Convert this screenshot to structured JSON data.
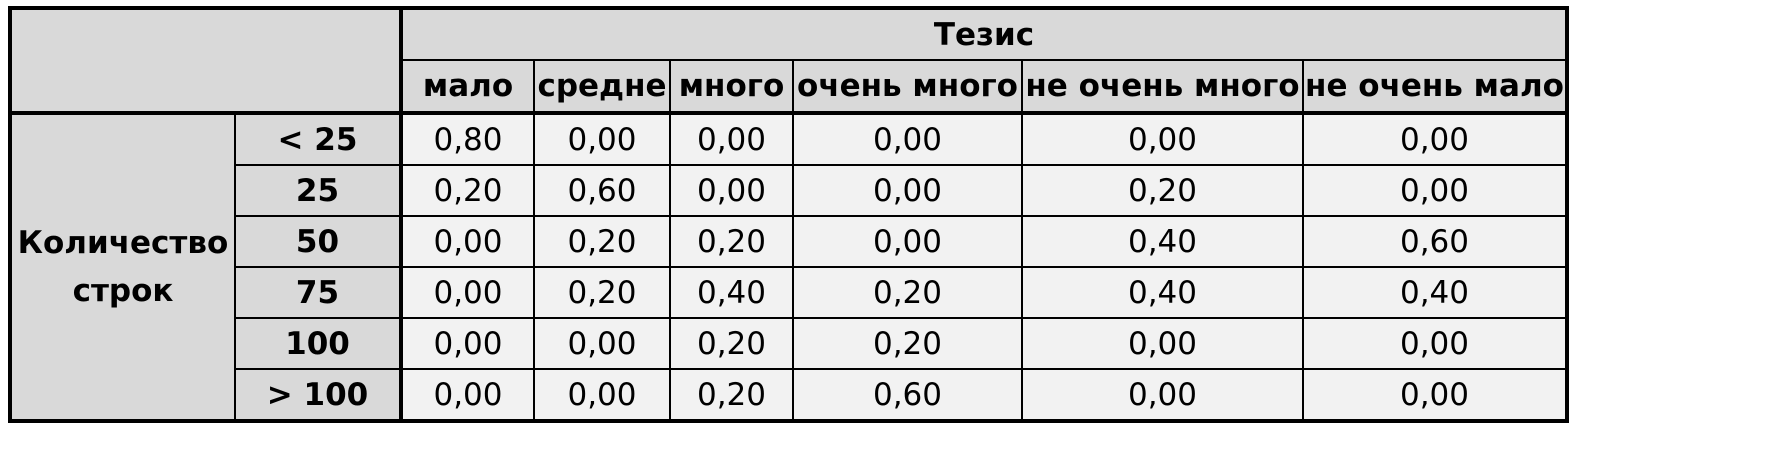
{
  "table": {
    "group_label": "Тезис",
    "columns": [
      "мало",
      "средне",
      "много",
      "очень много",
      "не очень много",
      "не очень мало"
    ],
    "row_group_label": "Количество строк",
    "rows": [
      {
        "label": "< 25",
        "values": [
          "0,80",
          "0,00",
          "0,00",
          "0,00",
          "0,00",
          "0,00"
        ]
      },
      {
        "label": "25",
        "values": [
          "0,20",
          "0,60",
          "0,00",
          "0,00",
          "0,20",
          "0,00"
        ]
      },
      {
        "label": "50",
        "values": [
          "0,00",
          "0,20",
          "0,20",
          "0,00",
          "0,40",
          "0,60"
        ]
      },
      {
        "label": "75",
        "values": [
          "0,00",
          "0,20",
          "0,40",
          "0,20",
          "0,40",
          "0,40"
        ]
      },
      {
        "label": "100",
        "values": [
          "0,00",
          "0,00",
          "0,20",
          "0,20",
          "0,00",
          "0,00"
        ]
      },
      {
        "label": "> 100",
        "values": [
          "0,00",
          "0,00",
          "0,20",
          "0,60",
          "0,00",
          "0,00"
        ]
      }
    ]
  }
}
